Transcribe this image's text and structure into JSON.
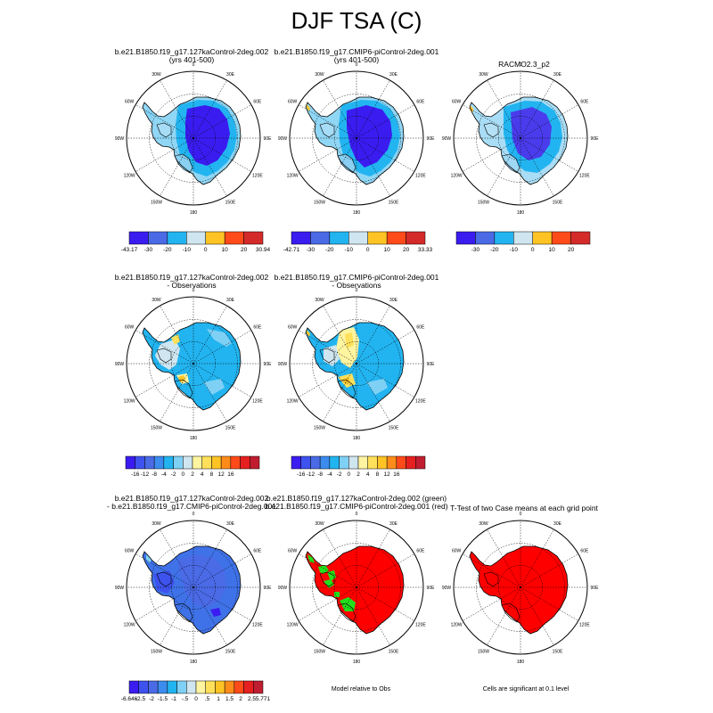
{
  "figure_title": "DJF TSA (C)",
  "panels": [
    {
      "id": "p1",
      "title1": "b.e21.B1850.f19_g17.127kaControl-2deg.002",
      "title2": "(yrs 401-500)",
      "scheme": "abs_a"
    },
    {
      "id": "p2",
      "title1": "b.e21.B1850.f19_g17.CMIP6-piControl-2deg.001",
      "title2": "(yrs 401-500)",
      "scheme": "abs_b"
    },
    {
      "id": "p3",
      "title1": "RACMO2.3_p2",
      "title2": "",
      "scheme": "abs_c"
    },
    {
      "id": "p4",
      "title1": "b.e21.B1850.f19_g17.127kaControl-2deg.002",
      "title2": "- Observations",
      "scheme": "diff_a"
    },
    {
      "id": "p5",
      "title1": "b.e21.B1850.f19_g17.CMIP6-piControl-2deg.001",
      "title2": "- Observations",
      "scheme": "diff_b"
    },
    {
      "id": "p6",
      "title1": "b.e21.B1850.f19_g17.127kaControl-2deg.002",
      "title2": "- b.e21.B1850.f19_g17.CMIP6-piControl-2deg.001",
      "scheme": "mdiff"
    },
    {
      "id": "p7",
      "title1": "b.e21.B1850.f19_g17.127kaControl-2deg.002 (green)",
      "title2": "b.e21.B1850.f19_g17.CMIP6-piControl-2deg.001 (red)",
      "scheme": "compare"
    },
    {
      "id": "p8",
      "title1": "T-Test of two Case means at each grid point",
      "title2": "",
      "scheme": "ttest"
    }
  ],
  "map_labels": {
    "lon": [
      "0",
      "30E",
      "60E",
      "90E",
      "120E",
      "150E",
      "180",
      "150W",
      "120W",
      "90W",
      "60W",
      "30W"
    ]
  },
  "colorbars": [
    {
      "id": "cb1",
      "colors": [
        "#3a1cf0",
        "#4a6ae6",
        "#22b4f0",
        "#cfe6f0",
        "#ffc424",
        "#ff4a1a",
        "#d42a2a"
      ],
      "labels": [
        "-43.17",
        "-30",
        "-20",
        "-10",
        "0",
        "10",
        "20",
        "30.94"
      ],
      "mode": "ends"
    },
    {
      "id": "cb2",
      "colors": [
        "#3a1cf0",
        "#4a6ae6",
        "#22b4f0",
        "#cfe6f0",
        "#ffc424",
        "#ff4a1a",
        "#d42a2a"
      ],
      "labels": [
        "-42.71",
        "-30",
        "-20",
        "-10",
        "0",
        "10",
        "20",
        "33.33"
      ],
      "mode": "ends"
    },
    {
      "id": "cb3",
      "colors": [
        "#3a1cf0",
        "#4a6ae6",
        "#22b4f0",
        "#cfe6f0",
        "#ffc424",
        "#ff4a1a",
        "#d42a2a"
      ],
      "labels": [
        "-30",
        "-20",
        "-10",
        "0",
        "10",
        "20"
      ],
      "mode": "inner"
    },
    {
      "id": "cb4",
      "colors": [
        "#3a1cf0",
        "#3e52ee",
        "#4a6ae6",
        "#3b8cee",
        "#22b4f0",
        "#7fd0f5",
        "#cfe6f0",
        "#fff4a0",
        "#ffe05a",
        "#ffc424",
        "#ff8c1a",
        "#ff4a1a",
        "#e62020",
        "#c01e30"
      ],
      "labels": [
        "-16",
        "-12",
        "-8",
        "-4",
        "-2",
        "0",
        "2",
        "4",
        "8",
        "12",
        "16"
      ],
      "mode": "inner"
    },
    {
      "id": "cb5",
      "colors": [
        "#3a1cf0",
        "#3e52ee",
        "#4a6ae6",
        "#3b8cee",
        "#22b4f0",
        "#7fd0f5",
        "#cfe6f0",
        "#fff4a0",
        "#ffe05a",
        "#ffc424",
        "#ff8c1a",
        "#ff4a1a",
        "#e62020",
        "#c01e30"
      ],
      "labels": [
        "-16",
        "-12",
        "-8",
        "-4",
        "-2",
        "0",
        "2",
        "4",
        "8",
        "12",
        "16"
      ],
      "mode": "inner"
    },
    {
      "id": "cb6",
      "colors": [
        "#3a1cf0",
        "#3e52ee",
        "#4a6ae6",
        "#3b8cee",
        "#22b4f0",
        "#7fd0f5",
        "#cfe6f0",
        "#fff4a0",
        "#ffe05a",
        "#ffc424",
        "#ff8c1a",
        "#ff4a1a",
        "#e62020",
        "#c01e30"
      ],
      "labels": [
        "-6.646",
        "-2.5",
        "-2",
        "-1.5",
        "-1",
        "-.5",
        "0",
        ".5",
        "1",
        "1.5",
        "2",
        "2.5",
        "5.771"
      ],
      "mode": "ends"
    }
  ],
  "notes": {
    "model_relative": "Model relative to Obs",
    "cells_significant": "Cells are significant at 0.1 level"
  },
  "colors": {
    "deep": "#3a1cf0",
    "blue": "#4a6ae6",
    "sky": "#22b4f0",
    "pale": "#cfe6f0",
    "yellow": "#ffe05a",
    "red": "#ff0000",
    "green": "#22e01c",
    "midblue": "#3f72e8"
  }
}
